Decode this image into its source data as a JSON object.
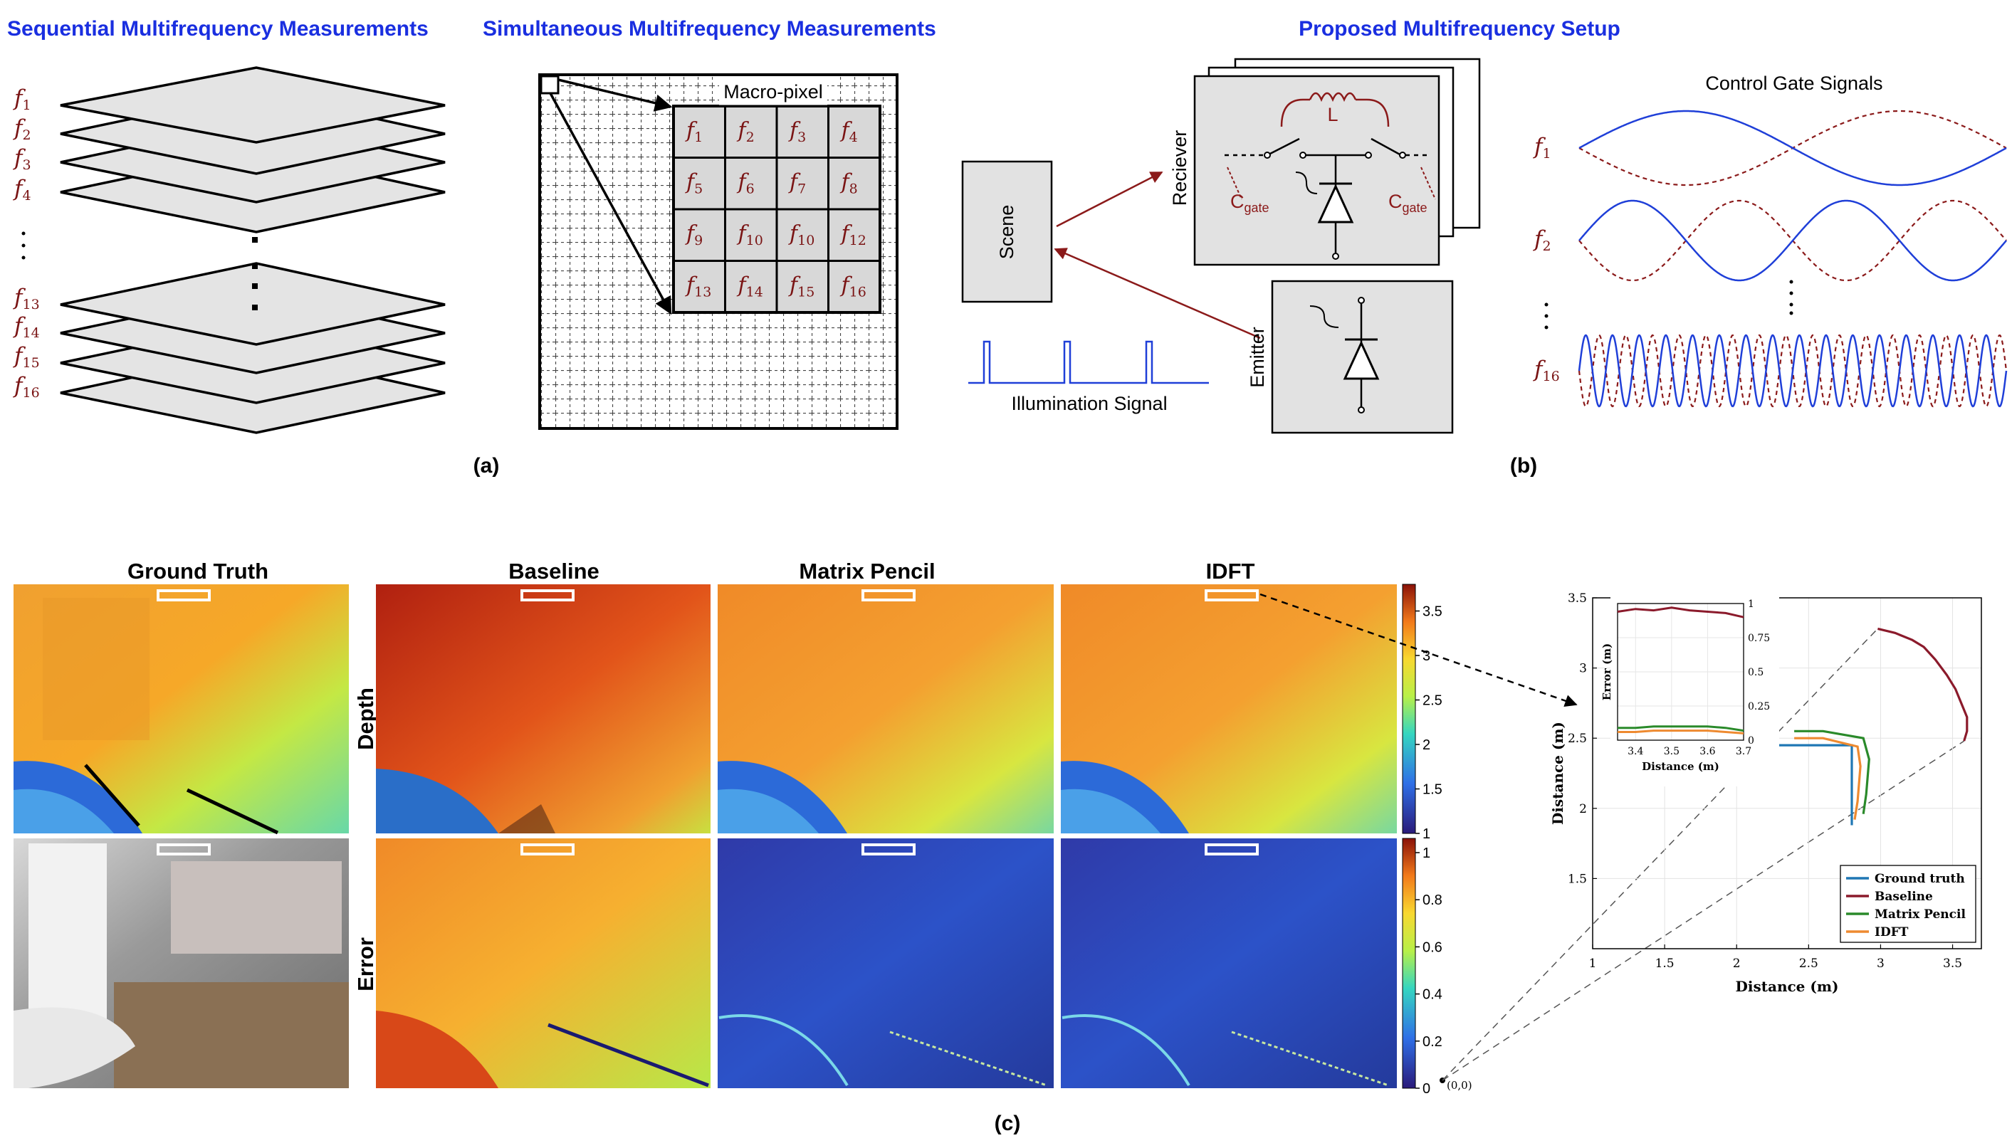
{
  "panel_a": {
    "title_sequential": "Sequential Multifrequency Measurements",
    "title_simultaneous": "Simultaneous Multifrequency Measurements",
    "freq_labels_left": [
      "f1",
      "f2",
      "f3",
      "f4",
      "f13",
      "f14",
      "f15",
      "f16"
    ],
    "macro_pixel_label": "Macro-pixel",
    "grid_cells": [
      [
        "f1",
        "f2",
        "f3",
        "f4"
      ],
      [
        "f5",
        "f6",
        "f7",
        "f8"
      ],
      [
        "f9",
        "f10",
        "f10",
        "f12"
      ],
      [
        "f13",
        "f14",
        "f15",
        "f16"
      ]
    ],
    "caption": "(a)"
  },
  "panel_b": {
    "title": "Proposed Multifrequency Setup",
    "scene_label": "Scene",
    "receiver_label": "Reciever",
    "emitter_label": "Emitter",
    "illumination_label": "Illumination Signal",
    "inductor_label": "L",
    "cgate_label": "C",
    "cgate_sub": "gate",
    "control_title": "Control Gate Signals",
    "signal_labels": [
      "f1",
      "f2",
      "f16"
    ],
    "caption": "(b)"
  },
  "panel_c": {
    "column_titles": [
      "Ground Truth",
      "Baseline",
      "Matrix Pencil",
      "IDFT"
    ],
    "row_labels": [
      "Depth",
      "Error"
    ],
    "depth_colorbar_ticks": [
      "3.5",
      "3",
      "2.5",
      "2",
      "1.5",
      "1"
    ],
    "error_colorbar_ticks": [
      "1",
      "0.8",
      "0.6",
      "0.4",
      "0.2",
      "0"
    ],
    "origin_label": "(0,0)",
    "caption": "(c)"
  },
  "colors": {
    "title_blue": "#1a2fe0",
    "freq_red": "#7a1414",
    "signal_blue": "#1f3fd8",
    "signal_red": "#8b1a1a",
    "ground_truth": "#1f77b4",
    "baseline": "#8b1a2b",
    "matrix_pencil": "#2a8a2a",
    "idft": "#ee8a30"
  },
  "chart_data": {
    "type": "line",
    "xlabel": "Distance (m)",
    "ylabel": "Distance (m)",
    "xlim": [
      1,
      3.7
    ],
    "ylim": [
      1,
      3.5
    ],
    "x_ticks": [
      "1",
      "1.5",
      "2",
      "2.5",
      "3",
      "3.5"
    ],
    "y_ticks": [
      "1.5",
      "2",
      "2.5",
      "3",
      "3.5"
    ],
    "legend_position": "bottom-right",
    "series": [
      {
        "name": "Ground truth",
        "x": [
          2.25,
          2.8,
          2.8
        ],
        "y": [
          2.45,
          2.45,
          1.88
        ]
      },
      {
        "name": "Baseline",
        "x": [
          2.98,
          3.1,
          3.22,
          3.3,
          3.38,
          3.46,
          3.52,
          3.56,
          3.6,
          3.6,
          3.58
        ],
        "y": [
          3.28,
          3.25,
          3.2,
          3.15,
          3.06,
          2.95,
          2.85,
          2.75,
          2.65,
          2.55,
          2.48
        ]
      },
      {
        "name": "Matrix Pencil",
        "x": [
          2.4,
          2.6,
          2.88,
          2.92,
          2.9,
          2.88
        ],
        "y": [
          2.55,
          2.55,
          2.5,
          2.35,
          2.1,
          1.96
        ]
      },
      {
        "name": "IDFT",
        "x": [
          2.4,
          2.6,
          2.84,
          2.86,
          2.84,
          2.82
        ],
        "y": [
          2.5,
          2.5,
          2.44,
          2.3,
          2.05,
          1.92
        ]
      }
    ],
    "inset": {
      "xlabel": "Distance (m)",
      "ylabel": "Error (m)",
      "xlim": [
        3.35,
        3.7
      ],
      "ylim": [
        0,
        1
      ],
      "x_ticks": [
        "3.4",
        "3.5",
        "3.6",
        "3.7"
      ],
      "y_ticks": [
        "0",
        "0.25",
        "0.5",
        "0.75",
        "1"
      ],
      "series": [
        {
          "name": "Baseline",
          "x": [
            3.35,
            3.4,
            3.45,
            3.5,
            3.55,
            3.6,
            3.65,
            3.7
          ],
          "y": [
            0.94,
            0.96,
            0.95,
            0.97,
            0.95,
            0.94,
            0.93,
            0.9
          ]
        },
        {
          "name": "Matrix Pencil",
          "x": [
            3.35,
            3.4,
            3.45,
            3.5,
            3.55,
            3.6,
            3.65,
            3.7
          ],
          "y": [
            0.09,
            0.09,
            0.1,
            0.1,
            0.1,
            0.1,
            0.09,
            0.07
          ]
        },
        {
          "name": "IDFT",
          "x": [
            3.35,
            3.4,
            3.45,
            3.5,
            3.55,
            3.6,
            3.65,
            3.7
          ],
          "y": [
            0.06,
            0.06,
            0.07,
            0.07,
            0.07,
            0.07,
            0.06,
            0.05
          ]
        }
      ]
    }
  }
}
